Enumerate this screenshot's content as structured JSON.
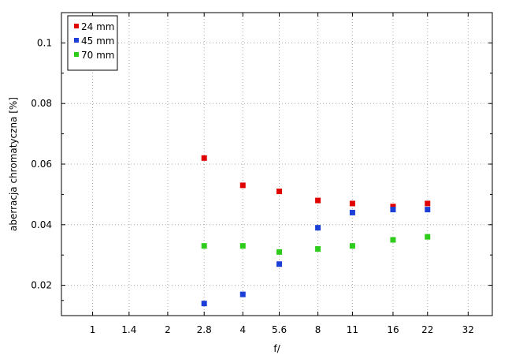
{
  "chart_data": {
    "type": "scatter",
    "xlabel": "f/",
    "ylabel": "aberracja chromatyczna [%]",
    "x_scale": "log2",
    "xlim": [
      0.75,
      40
    ],
    "ylim": [
      0.01,
      0.11
    ],
    "x_ticks": [
      1,
      1.4,
      2,
      2.8,
      4,
      5.6,
      8,
      11,
      16,
      22,
      32
    ],
    "x_tick_labels": [
      "1",
      "1.4",
      "2",
      "2.8",
      "4",
      "5.6",
      "8",
      "11",
      "16",
      "22",
      "32"
    ],
    "y_ticks": [
      0.02,
      0.04,
      0.06,
      0.08,
      0.1
    ],
    "y_tick_labels": [
      "0.02",
      "0.04",
      "0.06",
      "0.08",
      "0.1"
    ],
    "grid": true,
    "legend_position": "top-left",
    "series": [
      {
        "name": "24 mm",
        "color": "#e00000",
        "x": [
          2.8,
          4,
          5.6,
          8,
          11,
          16,
          22
        ],
        "y": [
          0.062,
          0.053,
          0.051,
          0.048,
          0.047,
          0.046,
          0.047
        ]
      },
      {
        "name": "45 mm",
        "color": "#1c3fd8",
        "x": [
          2.8,
          4,
          5.6,
          8,
          11,
          16,
          22
        ],
        "y": [
          0.014,
          0.017,
          0.027,
          0.039,
          0.044,
          0.045,
          0.045
        ]
      },
      {
        "name": "70 mm",
        "color": "#2ecc1a",
        "x": [
          2.8,
          4,
          5.6,
          8,
          11,
          16,
          22
        ],
        "y": [
          0.033,
          0.033,
          0.031,
          0.032,
          0.033,
          0.035,
          0.036
        ]
      }
    ]
  }
}
